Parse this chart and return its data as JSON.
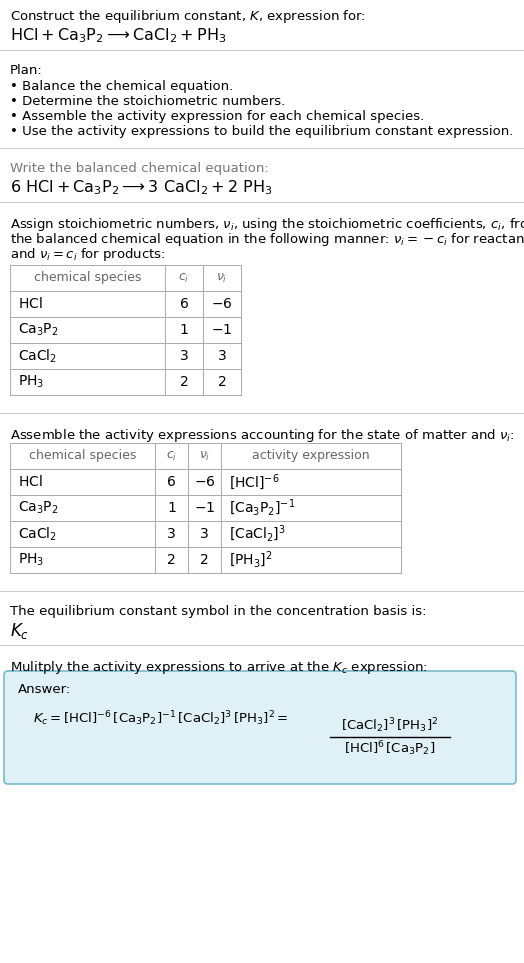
{
  "title_line1": "Construct the equilibrium constant, $K$, expression for:",
  "title_line2": "$\\mathrm{HCl} + \\mathrm{Ca_3P_2} \\longrightarrow \\mathrm{CaCl_2} + \\mathrm{PH_3}$",
  "plan_header": "Plan:",
  "plan_items": [
    "\\u2022 Balance the chemical equation.",
    "\\u2022 Determine the stoichiometric numbers.",
    "\\u2022 Assemble the activity expression for each chemical species.",
    "\\u2022 Use the activity expressions to build the equilibrium constant expression."
  ],
  "balanced_eq_header": "Write the balanced chemical equation:",
  "balanced_eq": "$6\\ \\mathrm{HCl} + \\mathrm{Ca_3P_2} \\longrightarrow 3\\ \\mathrm{CaCl_2} + 2\\ \\mathrm{PH_3}$",
  "stoich_intro": [
    "Assign stoichiometric numbers, $\\nu_i$, using the stoichiometric coefficients, $c_i$, from",
    "the balanced chemical equation in the following manner: $\\nu_i = -c_i$ for reactants",
    "and $\\nu_i = c_i$ for products:"
  ],
  "table1_headers": [
    "chemical species",
    "$c_i$",
    "$\\nu_i$"
  ],
  "table1_rows": [
    [
      "$\\mathrm{HCl}$",
      "6",
      "$-6$"
    ],
    [
      "$\\mathrm{Ca_3P_2}$",
      "1",
      "$-1$"
    ],
    [
      "$\\mathrm{CaCl_2}$",
      "3",
      "3"
    ],
    [
      "$\\mathrm{PH_3}$",
      "2",
      "2"
    ]
  ],
  "activity_intro": "Assemble the activity expressions accounting for the state of matter and $\\nu_i$:",
  "table2_headers": [
    "chemical species",
    "$c_i$",
    "$\\nu_i$",
    "activity expression"
  ],
  "table2_rows": [
    [
      "$\\mathrm{HCl}$",
      "6",
      "$-6$",
      "$[\\mathrm{HCl}]^{-6}$"
    ],
    [
      "$\\mathrm{Ca_3P_2}$",
      "1",
      "$-1$",
      "$[\\mathrm{Ca_3P_2}]^{-1}$"
    ],
    [
      "$\\mathrm{CaCl_2}$",
      "3",
      "3",
      "$[\\mathrm{CaCl_2}]^3$"
    ],
    [
      "$\\mathrm{PH_3}$",
      "2",
      "2",
      "$[\\mathrm{PH_3}]^2$"
    ]
  ],
  "kc_symbol_text": "The equilibrium constant symbol in the concentration basis is:",
  "kc_symbol": "$K_c$",
  "multiply_text": "Mulitply the activity expressions to arrive at the $K_c$ expression:",
  "answer_label": "Answer:",
  "kc_expr_left": "$K_c = [\\mathrm{HCl}]^{-6}\\,[\\mathrm{Ca_3P_2}]^{-1}\\,[\\mathrm{CaCl_2}]^3\\,[\\mathrm{PH_3}]^2 = $",
  "kc_numerator": "$[\\mathrm{CaCl_2}]^3\\,[\\mathrm{PH_3}]^2$",
  "kc_denominator": "$[\\mathrm{HCl}]^6\\,[\\mathrm{Ca_3P_2}]$",
  "bg_color": "#ffffff",
  "text_color": "#000000",
  "gray_color": "#555555",
  "table_line_color": "#aaaaaa",
  "answer_box_facecolor": "#dff0f7",
  "answer_box_edgecolor": "#7ab8cc"
}
